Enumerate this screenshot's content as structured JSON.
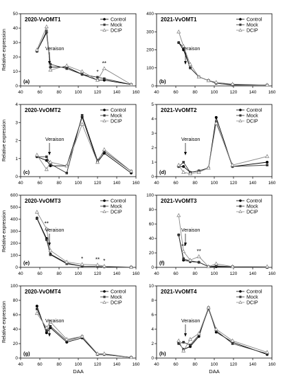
{
  "chart_data": [
    {
      "type": "line",
      "title": "2020-VvOMT1",
      "panel_label": "(a)",
      "annotation": "Veraison",
      "ylabel": "Relative expression",
      "xlabel": "",
      "xlim": [
        40,
        160
      ],
      "ylim": [
        0,
        50
      ],
      "xticks": [
        40,
        60,
        80,
        100,
        120,
        140,
        160
      ],
      "yticks": [
        0,
        10,
        20,
        30,
        40,
        50
      ],
      "sig": [
        {
          "x": 120,
          "text": "*"
        },
        {
          "x": 127,
          "text": "**"
        }
      ],
      "legend": [
        "Control",
        "Mock",
        "DCIP"
      ],
      "series": [
        {
          "name": "Control",
          "x": [
            57,
            67,
            71,
            88,
            104,
            120,
            127,
            155
          ],
          "y": [
            24,
            37,
            13,
            13,
            8,
            4,
            4,
            1
          ]
        },
        {
          "name": "Mock",
          "x": [
            57,
            67,
            71,
            88,
            104,
            120,
            127,
            155
          ],
          "y": [
            24,
            38,
            15,
            12,
            8,
            6,
            5,
            1
          ]
        },
        {
          "name": "DCIP",
          "x": [
            57,
            67,
            71,
            88,
            104,
            120,
            127,
            155
          ],
          "y": [
            25,
            41,
            11,
            14,
            10,
            4,
            12,
            1
          ]
        }
      ]
    },
    {
      "type": "line",
      "title": "2021-VvOMT1",
      "panel_label": "(b)",
      "annotation": "Veraison",
      "ylabel": "",
      "xlabel": "",
      "xlim": [
        40,
        160
      ],
      "ylim": [
        0,
        400
      ],
      "xticks": [
        40,
        60,
        80,
        100,
        120,
        140,
        160
      ],
      "yticks": [
        0,
        100,
        200,
        300,
        400
      ],
      "sig": [],
      "legend": [
        "Control",
        "Mock",
        "DCIP"
      ],
      "series": [
        {
          "name": "Control",
          "x": [
            63,
            68,
            75,
            84,
            94,
            102,
            119,
            155
          ],
          "y": [
            240,
            200,
            100,
            50,
            30,
            15,
            5,
            5
          ]
        },
        {
          "name": "Mock",
          "x": [
            63,
            68,
            75,
            84,
            94,
            102,
            119,
            155
          ],
          "y": [
            240,
            215,
            100,
            50,
            30,
            15,
            8,
            5
          ]
        },
        {
          "name": "DCIP",
          "x": [
            63,
            68,
            75,
            84,
            94,
            102,
            119,
            155
          ],
          "y": [
            300,
            220,
            120,
            50,
            30,
            20,
            10,
            5
          ]
        }
      ]
    },
    {
      "type": "line",
      "title": "2020-VvOMT2",
      "panel_label": "(c)",
      "annotation": "Veraison",
      "ylabel": "Relative expression",
      "xlabel": "",
      "xlim": [
        40,
        160
      ],
      "ylim": [
        0,
        4
      ],
      "xticks": [
        40,
        60,
        80,
        100,
        120,
        140,
        160
      ],
      "yticks": [
        0,
        1,
        2,
        3,
        4
      ],
      "sig": [],
      "legend": [
        "Control",
        "Mock",
        "DCIP"
      ],
      "series": [
        {
          "name": "Control",
          "x": [
            57,
            67,
            71,
            88,
            104,
            120,
            127,
            155
          ],
          "y": [
            1.1,
            0.9,
            0.6,
            0.6,
            3.3,
            0.8,
            1.3,
            0.2
          ]
        },
        {
          "name": "Mock",
          "x": [
            57,
            67,
            71,
            88,
            104,
            120,
            127,
            155
          ],
          "y": [
            1.1,
            1.1,
            0.7,
            0.2,
            3.4,
            0.9,
            1.4,
            0.3
          ]
        },
        {
          "name": "DCIP",
          "x": [
            57,
            67,
            71,
            88,
            104,
            120,
            127,
            155
          ],
          "y": [
            1.2,
            0.4,
            0.8,
            0.6,
            2.9,
            0.8,
            1.5,
            0.3
          ]
        }
      ]
    },
    {
      "type": "line",
      "title": "2021-VvOMT2",
      "panel_label": "(d)",
      "annotation": "Veraison",
      "ylabel": "",
      "xlabel": "",
      "xlim": [
        40,
        160
      ],
      "ylim": [
        0,
        5
      ],
      "xticks": [
        40,
        60,
        80,
        100,
        120,
        140,
        160
      ],
      "yticks": [
        0,
        1,
        2,
        3,
        4,
        5
      ],
      "sig": [],
      "legend": [
        "Control",
        "Mock",
        "DCIP"
      ],
      "series": [
        {
          "name": "Control",
          "x": [
            63,
            68,
            75,
            84,
            94,
            102,
            119,
            155
          ],
          "y": [
            0.7,
            0.7,
            0.3,
            0.4,
            0.6,
            4.1,
            0.7,
            1.0
          ]
        },
        {
          "name": "Mock",
          "x": [
            63,
            68,
            75,
            84,
            94,
            102,
            119,
            155
          ],
          "y": [
            0.7,
            1.0,
            0.3,
            0.4,
            0.6,
            3.8,
            0.7,
            0.8
          ]
        },
        {
          "name": "DCIP",
          "x": [
            63,
            68,
            75,
            84,
            94,
            102,
            119,
            155
          ],
          "y": [
            0.8,
            0.3,
            0.2,
            0.3,
            0.6,
            3.7,
            0.8,
            1.4
          ]
        }
      ]
    },
    {
      "type": "line",
      "title": "2020-VvOMT3",
      "panel_label": "(e)",
      "annotation": "Veraison",
      "ylabel": "Relative expression",
      "xlabel": "",
      "xlim": [
        40,
        160
      ],
      "ylim": [
        0,
        600
      ],
      "xticks": [
        40,
        60,
        80,
        100,
        120,
        140,
        160
      ],
      "yticks": [
        0,
        100,
        200,
        300,
        400,
        500,
        600
      ],
      "sig": [
        {
          "x": 67,
          "text": "**"
        },
        {
          "x": 104,
          "text": "*"
        },
        {
          "x": 120,
          "text": "**"
        },
        {
          "x": 127,
          "text": "*"
        }
      ],
      "legend": [
        "Control",
        "Mock",
        "DCIP"
      ],
      "series": [
        {
          "name": "Control",
          "x": [
            57,
            67,
            71,
            88,
            104,
            120,
            127,
            155
          ],
          "y": [
            410,
            240,
            110,
            35,
            10,
            8,
            4,
            2
          ]
        },
        {
          "name": "Mock",
          "x": [
            57,
            67,
            71,
            88,
            104,
            120,
            127,
            155
          ],
          "y": [
            405,
            230,
            105,
            30,
            10,
            8,
            4,
            2
          ]
        },
        {
          "name": "DCIP",
          "x": [
            57,
            67,
            71,
            88,
            104,
            120,
            127,
            155
          ],
          "y": [
            460,
            320,
            140,
            45,
            25,
            20,
            10,
            2
          ]
        }
      ]
    },
    {
      "type": "line",
      "title": "2021-VvOMT3",
      "panel_label": "(f)",
      "annotation": "Veraison",
      "ylabel": "",
      "xlabel": "",
      "xlim": [
        40,
        160
      ],
      "ylim": [
        0,
        100
      ],
      "xticks": [
        40,
        60,
        80,
        100,
        120,
        140,
        160
      ],
      "yticks": [
        0,
        20,
        40,
        60,
        80,
        100
      ],
      "sig": [
        {
          "x": 68,
          "text": "**"
        },
        {
          "x": 84,
          "text": "**"
        }
      ],
      "legend": [
        "Control",
        "Mock",
        "DCIP"
      ],
      "series": [
        {
          "name": "Control",
          "x": [
            63,
            68,
            75,
            84,
            94,
            102,
            119,
            155
          ],
          "y": [
            45,
            10,
            8,
            7,
            1,
            1,
            1,
            0
          ]
        },
        {
          "name": "Mock",
          "x": [
            63,
            68,
            75,
            84,
            94,
            102,
            119,
            155
          ],
          "y": [
            45,
            12,
            9,
            7,
            1,
            2,
            1,
            0
          ]
        },
        {
          "name": "DCIP",
          "x": [
            63,
            68,
            75,
            84,
            94,
            102,
            119,
            155
          ],
          "y": [
            72,
            22,
            10,
            15,
            1,
            5,
            1,
            1
          ]
        }
      ]
    },
    {
      "type": "line",
      "title": "2020-VvOMT4",
      "panel_label": "(g)",
      "annotation": "Veraison",
      "ylabel": "Relative expression",
      "xlabel": "DAA",
      "xlim": [
        40,
        160
      ],
      "ylim": [
        0,
        100
      ],
      "xticks": [
        40,
        60,
        80,
        100,
        120,
        140,
        160
      ],
      "yticks": [
        0,
        20,
        40,
        60,
        80,
        100
      ],
      "sig": [],
      "legend": [
        "Control",
        "Mock",
        "DCIP"
      ],
      "series": [
        {
          "name": "Control",
          "x": [
            57,
            67,
            71,
            88,
            104,
            120,
            127,
            155
          ],
          "y": [
            72,
            35,
            42,
            22,
            28,
            5,
            5,
            1
          ]
        },
        {
          "name": "Mock",
          "x": [
            57,
            67,
            71,
            88,
            104,
            120,
            127,
            155
          ],
          "y": [
            68,
            38,
            44,
            24,
            30,
            5,
            5,
            1
          ]
        },
        {
          "name": "DCIP",
          "x": [
            57,
            67,
            71,
            88,
            104,
            120,
            127,
            155
          ],
          "y": [
            62,
            42,
            50,
            26,
            30,
            6,
            6,
            1
          ]
        }
      ]
    },
    {
      "type": "line",
      "title": "2021-VvOMT4",
      "panel_label": "(h)",
      "annotation": "Veraison",
      "ylabel": "",
      "xlabel": "DAA",
      "xlim": [
        40,
        160
      ],
      "ylim": [
        0,
        10
      ],
      "xticks": [
        40,
        60,
        80,
        100,
        120,
        140,
        160
      ],
      "yticks": [
        0,
        2,
        4,
        6,
        8,
        10
      ],
      "sig": [],
      "legend": [
        "Control",
        "Mock",
        "DCIP"
      ],
      "series": [
        {
          "name": "Control",
          "x": [
            63,
            68,
            75,
            84,
            94,
            102,
            119,
            155
          ],
          "y": [
            2.1,
            1.2,
            1.6,
            3.0,
            7.0,
            3.6,
            2.2,
            0.5
          ]
        },
        {
          "name": "Mock",
          "x": [
            63,
            68,
            75,
            84,
            94,
            102,
            119,
            155
          ],
          "y": [
            2.0,
            2.2,
            1.8,
            3.2,
            6.8,
            3.8,
            2.0,
            0.6
          ]
        },
        {
          "name": "DCIP",
          "x": [
            63,
            68,
            75,
            84,
            94,
            102,
            119,
            155
          ],
          "y": [
            2.4,
            1.0,
            2.6,
            3.4,
            7.0,
            4.0,
            2.4,
            0.8
          ]
        }
      ]
    }
  ]
}
